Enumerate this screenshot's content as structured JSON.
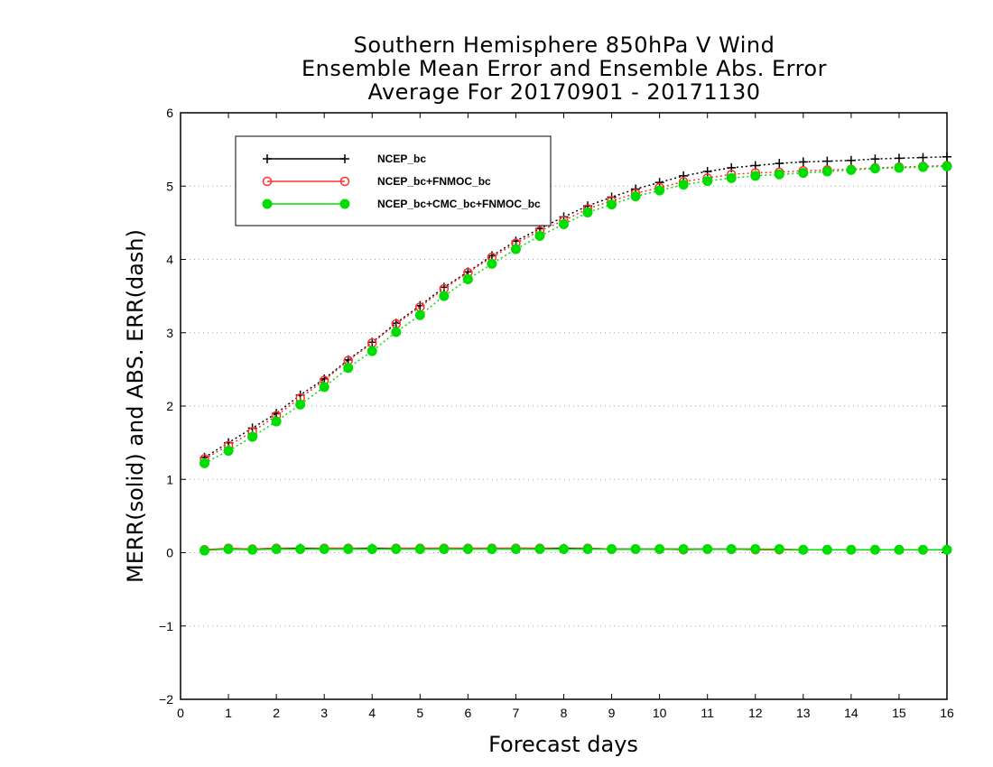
{
  "chart_data": {
    "type": "line",
    "title_lines": [
      "Southern Hemisphere 850hPa V Wind",
      "Ensemble Mean Error and Ensemble Abs. Error",
      "Average For 20170901 - 20171130"
    ],
    "xlabel": "Forecast days",
    "ylabel": "MERR(solid) and ABS. ERR(dash)",
    "xlim": [
      0,
      16
    ],
    "ylim": [
      -2,
      6
    ],
    "xticks": [
      0,
      1,
      2,
      3,
      4,
      5,
      6,
      7,
      8,
      9,
      10,
      11,
      12,
      13,
      14,
      15,
      16
    ],
    "yticks": [
      -2,
      -1,
      0,
      1,
      2,
      3,
      4,
      5,
      6
    ],
    "grid": "horizontal dotted",
    "legend_position": "top-left",
    "x": [
      0.5,
      1,
      1.5,
      2,
      2.5,
      3,
      3.5,
      4,
      4.5,
      5,
      5.5,
      6,
      6.5,
      7,
      7.5,
      8,
      8.5,
      9,
      9.5,
      10,
      10.5,
      11,
      11.5,
      12,
      12.5,
      13,
      13.5,
      14,
      14.5,
      15,
      15.5,
      16
    ],
    "series": [
      {
        "name": "NCEP_bc",
        "color": "#000000",
        "marker": "plus",
        "abs_err": [
          1.3,
          1.5,
          1.7,
          1.9,
          2.15,
          2.37,
          2.63,
          2.87,
          3.13,
          3.37,
          3.62,
          3.83,
          4.05,
          4.25,
          4.42,
          4.58,
          4.73,
          4.85,
          4.96,
          5.05,
          5.14,
          5.2,
          5.25,
          5.28,
          5.31,
          5.33,
          5.34,
          5.35,
          5.37,
          5.38,
          5.39,
          5.4
        ],
        "mean_err": [
          0.04,
          0.05,
          0.05,
          0.06,
          0.06,
          0.06,
          0.06,
          0.06,
          0.06,
          0.06,
          0.06,
          0.06,
          0.06,
          0.06,
          0.06,
          0.06,
          0.06,
          0.05,
          0.05,
          0.05,
          0.05,
          0.05,
          0.05,
          0.05,
          0.04,
          0.04,
          0.04,
          0.04,
          0.04,
          0.04,
          0.04,
          0.04
        ]
      },
      {
        "name": "NCEP_bc+FNMOC_bc",
        "color": "#ff3030",
        "marker": "open-circle",
        "abs_err": [
          1.28,
          1.46,
          1.65,
          1.87,
          2.11,
          2.35,
          2.62,
          2.86,
          3.12,
          3.35,
          3.6,
          3.82,
          4.03,
          4.22,
          4.39,
          4.53,
          4.69,
          4.8,
          4.9,
          4.98,
          5.06,
          5.11,
          5.16,
          5.18,
          5.19,
          5.21,
          5.22,
          5.23,
          5.25,
          5.26,
          5.27,
          5.28
        ],
        "mean_err": [
          0.04,
          0.06,
          0.05,
          0.06,
          0.05,
          0.06,
          0.06,
          0.05,
          0.06,
          0.06,
          0.06,
          0.06,
          0.06,
          0.06,
          0.06,
          0.05,
          0.06,
          0.05,
          0.05,
          0.05,
          0.04,
          0.05,
          0.05,
          0.04,
          0.04,
          0.04,
          0.04,
          0.04,
          0.04,
          0.04,
          0.04,
          0.04
        ]
      },
      {
        "name": "NCEP_bc+CMC_bc+FNMOC_bc",
        "color": "#00dd00",
        "marker": "filled-circle",
        "abs_err": [
          1.22,
          1.39,
          1.58,
          1.79,
          2.02,
          2.26,
          2.52,
          2.75,
          3.01,
          3.24,
          3.5,
          3.73,
          3.94,
          4.14,
          4.32,
          4.48,
          4.64,
          4.75,
          4.86,
          4.94,
          5.02,
          5.07,
          5.11,
          5.14,
          5.16,
          5.18,
          5.2,
          5.22,
          5.24,
          5.25,
          5.26,
          5.27
        ],
        "mean_err": [
          0.03,
          0.05,
          0.04,
          0.05,
          0.05,
          0.05,
          0.05,
          0.05,
          0.05,
          0.05,
          0.05,
          0.05,
          0.05,
          0.05,
          0.05,
          0.05,
          0.05,
          0.05,
          0.05,
          0.05,
          0.05,
          0.05,
          0.05,
          0.05,
          0.05,
          0.04,
          0.04,
          0.04,
          0.04,
          0.04,
          0.04,
          0.04
        ]
      }
    ]
  }
}
